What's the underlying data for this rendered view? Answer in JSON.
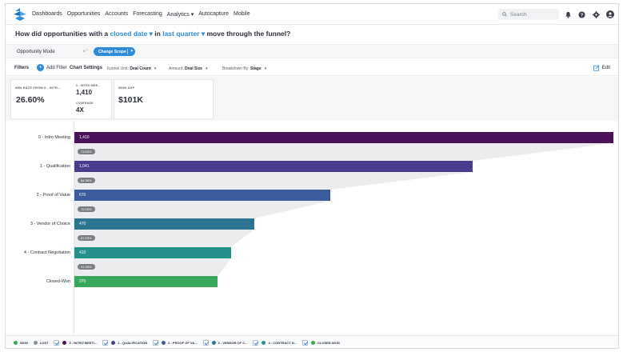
{
  "nav": {
    "items": [
      "Dashboards",
      "Opportunities",
      "Accounts",
      "Forecasting",
      "Analytics ▾",
      "Autocapture",
      "Mobile"
    ],
    "search_placeholder": "Search"
  },
  "question": {
    "part1": "How did opportunities with a ",
    "link1": "closed date ▾",
    "part2": " in ",
    "link2": "last quarter ▾",
    "part3": " move through the funnel?"
  },
  "mode": {
    "label": "Opportunity Mode",
    "clear": "×",
    "scope_button": "Change Scope",
    "scope_chevron": "▾"
  },
  "filters": {
    "title": "Filters",
    "add": "Add Filter",
    "chart_settings": "Chart Settings",
    "funnel_unit_label": "Funnel Unit: ",
    "funnel_unit_value": "Deal Count",
    "amount_label": "Amount: ",
    "amount_value": "Deal Size",
    "breakdown_label": "Breakdown By: ",
    "breakdown_value": "Stage",
    "edit": "Edit"
  },
  "kpis": {
    "win_rate_label": "WIN RATE FROM 0 - INTR...",
    "win_rate_value": "26.60%",
    "intro_label": "0 - INTRO MEE...",
    "intro_value": "1,410",
    "coverage_label": "COVERAGE",
    "coverage_value": "4X",
    "asp_label": "WON ASP",
    "asp_value": "$101K"
  },
  "chart_data": {
    "type": "bar",
    "orientation": "horizontal-funnel",
    "categories": [
      "0 - Intro Meeting",
      "1 - Qualification",
      "2 - Proof of Value",
      "3 - Vendor of Choice",
      "4 - Contract Negotiation",
      "Closed-Won"
    ],
    "values": [
      1410,
      1041,
      670,
      470,
      410,
      375
    ],
    "value_labels": [
      "1,410",
      "1,041",
      "670",
      "470",
      "410",
      "375"
    ],
    "conversion_labels": [
      "73.83%",
      "64.36%",
      "70.15%",
      "87.23%",
      "91.46%"
    ],
    "colors": [
      "#4b1259",
      "#4a3c8c",
      "#3b5c9c",
      "#2b7590",
      "#22928a",
      "#3aa85a"
    ],
    "xlim": [
      0,
      1410
    ]
  },
  "legend": [
    {
      "label": "WON",
      "color": "#3aa85a",
      "checkbox": false
    },
    {
      "label": "LOST",
      "color": "#8a8e96",
      "checkbox": false
    },
    {
      "label": "0 - INTRO MEETI...",
      "color": "#4b1259",
      "checkbox": true
    },
    {
      "label": "1 - QUALIFICATION",
      "color": "#4a3c8c",
      "checkbox": true
    },
    {
      "label": "2 - PROOF OF VA...",
      "color": "#3b5c9c",
      "checkbox": true
    },
    {
      "label": "3 - VENDOR OF C...",
      "color": "#2b7590",
      "checkbox": true
    },
    {
      "label": "4 - CONTRACT N...",
      "color": "#22928a",
      "checkbox": true
    },
    {
      "label": "CLOSED-WON",
      "color": "#3aa85a",
      "checkbox": true
    }
  ]
}
